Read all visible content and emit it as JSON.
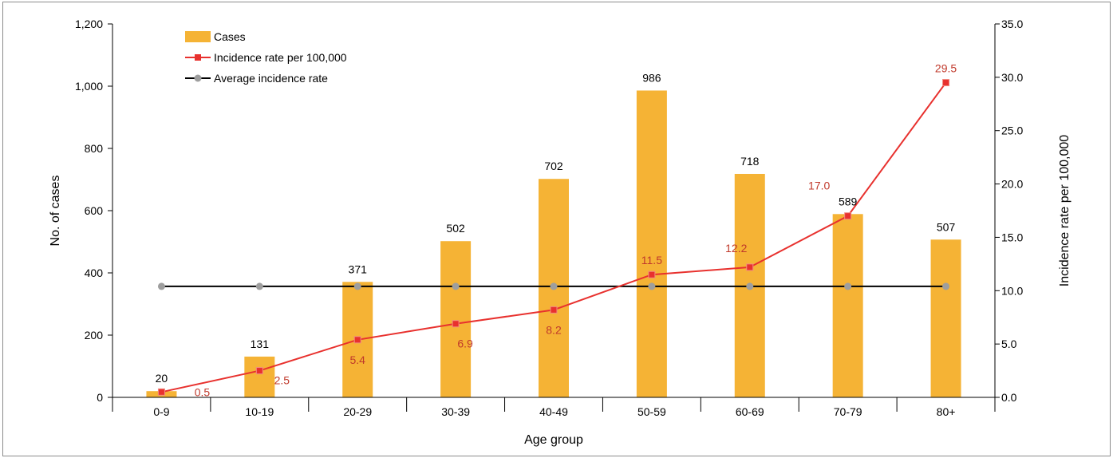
{
  "chart_data": {
    "type": "bar",
    "xlabel": "Age group",
    "ylabel": "No. of cases",
    "y2label": "Incidence rate per 100,000",
    "ylim": [
      0,
      1200
    ],
    "y2lim": [
      0,
      35
    ],
    "yticks": [
      "0",
      "200",
      "400",
      "600",
      "800",
      "1,000",
      "1,200"
    ],
    "y2ticks": [
      "0.0",
      "5.0",
      "10.0",
      "15.0",
      "20.0",
      "25.0",
      "30.0",
      "35.0"
    ],
    "categories": [
      "0-9",
      "10-19",
      "20-29",
      "30-39",
      "40-49",
      "50-59",
      "60-69",
      "70-79",
      "80+"
    ],
    "legend_position": "top-left",
    "grid": false,
    "series": [
      {
        "name": "Cases",
        "type": "bar",
        "axis": "left",
        "color": "#F5B335",
        "values": [
          20,
          131,
          371,
          502,
          702,
          986,
          718,
          589,
          507
        ],
        "labels": [
          "20",
          "131",
          "371",
          "502",
          "702",
          "986",
          "718",
          "589",
          "507"
        ]
      },
      {
        "name": "Incidence rate per 100,000",
        "type": "line",
        "axis": "right",
        "color": "#E8312E",
        "label_color": "#C0392B",
        "values": [
          0.5,
          2.5,
          5.4,
          6.9,
          8.2,
          11.5,
          12.2,
          17.0,
          29.5
        ],
        "labels": [
          "0.5",
          "2.5",
          "5.4",
          "6.9",
          "8.2",
          "11.5",
          "12.2",
          "17.0",
          "29.5"
        ]
      },
      {
        "name": "Average incidence rate",
        "type": "line",
        "axis": "right",
        "color": "#000000",
        "marker_color": "#9E9E9E",
        "values": [
          10.4,
          10.4,
          10.4,
          10.4,
          10.4,
          10.4,
          10.4,
          10.4,
          10.4
        ]
      }
    ]
  }
}
